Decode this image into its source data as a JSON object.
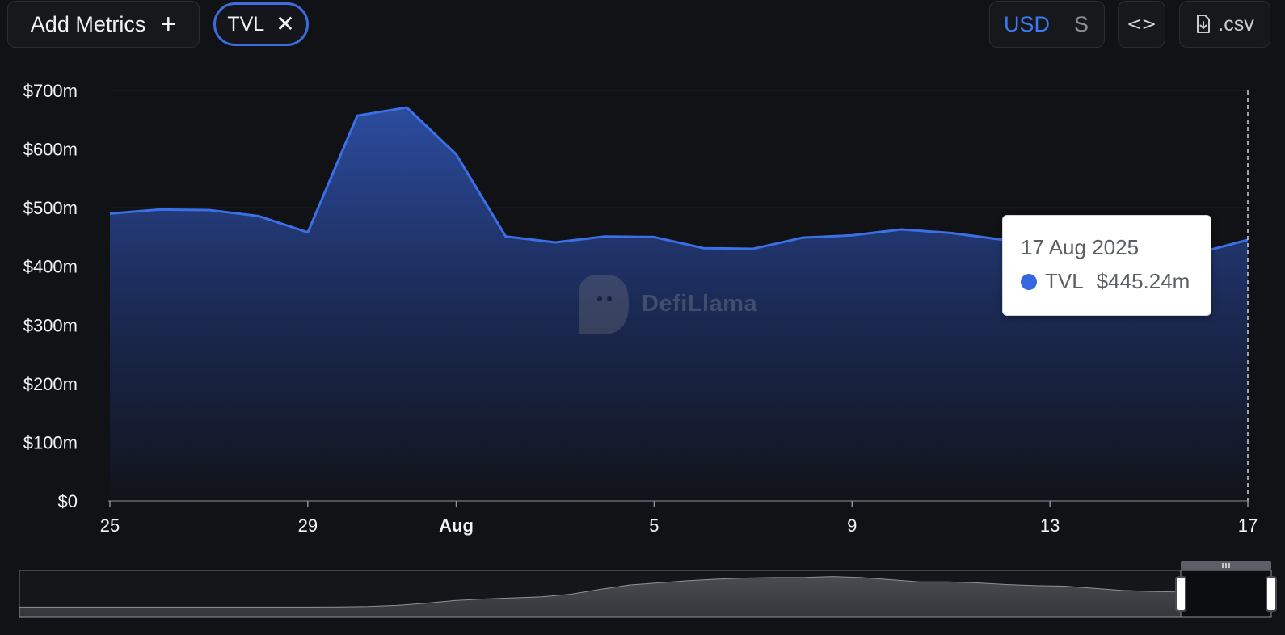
{
  "toolbar": {
    "add_metrics_label": "Add Metrics",
    "add_icon": "plus-icon",
    "metric_chip_label": "TVL",
    "remove_icon": "close-icon",
    "currency_selected": "USD",
    "currency_alt": "S",
    "embed_icon": "code-brackets-icon",
    "embed_glyph": "<>",
    "csv_icon": "file-download-icon",
    "csv_label": ".csv"
  },
  "colors": {
    "accent": "#3d79f2",
    "line": "#3b6fe6",
    "background": "#111215"
  },
  "watermark": {
    "text": "DefiLlama"
  },
  "tooltip": {
    "date": "17 Aug 2025",
    "series_name": "TVL",
    "value": "$445.24m"
  },
  "chart_data": {
    "type": "area",
    "x": [
      "2025-07-25",
      "2025-07-26",
      "2025-07-27",
      "2025-07-28",
      "2025-07-29",
      "2025-07-30",
      "2025-07-31",
      "2025-08-01",
      "2025-08-02",
      "2025-08-03",
      "2025-08-04",
      "2025-08-05",
      "2025-08-06",
      "2025-08-07",
      "2025-08-08",
      "2025-08-09",
      "2025-08-10",
      "2025-08-11",
      "2025-08-12",
      "2025-08-13",
      "2025-08-14",
      "2025-08-15",
      "2025-08-16",
      "2025-08-17"
    ],
    "series": [
      {
        "name": "TVL",
        "values": [
          490,
          497,
          496,
          486,
          458,
          657,
          671,
          591,
          451,
          441,
          451,
          450,
          431,
          430,
          449,
          453,
          463,
          457,
          446,
          437,
          426,
          412,
          423,
          445.24
        ]
      }
    ],
    "x_tick_labels": [
      {
        "date": "2025-07-25",
        "label": "25",
        "bold": false
      },
      {
        "date": "2025-07-29",
        "label": "29",
        "bold": false
      },
      {
        "date": "2025-08-01",
        "label": "Aug",
        "bold": true
      },
      {
        "date": "2025-08-05",
        "label": "5",
        "bold": false
      },
      {
        "date": "2025-08-09",
        "label": "9",
        "bold": false
      },
      {
        "date": "2025-08-13",
        "label": "13",
        "bold": false
      },
      {
        "date": "2025-08-17",
        "label": "17",
        "bold": false
      }
    ],
    "y_ticks": [
      0,
      100,
      200,
      300,
      400,
      500,
      600,
      700
    ],
    "y_tick_labels": [
      "$0",
      "$100m",
      "$200m",
      "$300m",
      "$400m",
      "$500m",
      "$600m",
      "$700m"
    ],
    "ylim": [
      0,
      700
    ],
    "grid": true,
    "title": "",
    "xlabel": "",
    "ylabel": "",
    "overview_range_values": [
      95,
      95,
      95,
      95,
      95,
      95,
      95,
      95,
      95,
      95,
      95,
      96,
      100,
      110,
      130,
      155,
      170,
      180,
      190,
      215,
      260,
      300,
      320,
      340,
      355,
      365,
      370,
      370,
      380,
      370,
      350,
      330,
      330,
      320,
      305,
      295,
      290,
      270,
      250,
      240,
      235
    ]
  }
}
